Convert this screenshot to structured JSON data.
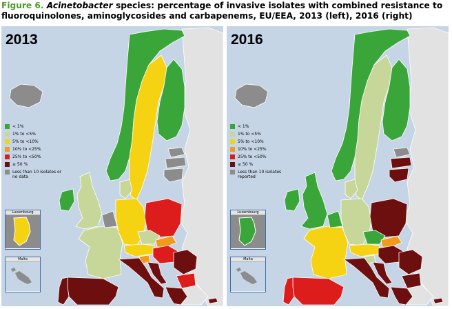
{
  "caption": {
    "figure_label": "Figure 6.",
    "genus": "Acinetobacter",
    "rest": "species: percentage of invasive isolates with combined resistance to fluoroquinolones, aminoglycosides and carbapenems, EU/EEA, 2013 (left), 2016 (right)"
  },
  "colors": {
    "lt1": "#3aa63a",
    "1to5": "#c7d79a",
    "5to10": "#f5d312",
    "10to25": "#f29a1a",
    "25to50": "#dd1c1c",
    "ge50": "#6e0f0f",
    "nodata": "#8c8c8c",
    "outside": "#e2e2e2",
    "sea": "#c5d5e5"
  },
  "legend_left": [
    {
      "label": "< 1%",
      "category": "lt1"
    },
    {
      "label": "1% to <5%",
      "category": "1to5"
    },
    {
      "label": "5% to <10%",
      "category": "5to10"
    },
    {
      "label": "10% to <25%",
      "category": "10to25"
    },
    {
      "label": "25% to <50%",
      "category": "25to50"
    },
    {
      "label": "≥ 50 %",
      "category": "ge50"
    },
    {
      "label": "Less than 10 isolates or no data",
      "category": "nodata"
    }
  ],
  "legend_right": [
    {
      "label": "< 1%",
      "category": "lt1"
    },
    {
      "label": "1% to <5%",
      "category": "1to5"
    },
    {
      "label": "5% to <10%",
      "category": "5to10"
    },
    {
      "label": "10% to <25%",
      "category": "10to25"
    },
    {
      "label": "25% to <50%",
      "category": "25to50"
    },
    {
      "label": "≥ 50 %",
      "category": "ge50"
    },
    {
      "label": "Less than 10 isolates reported",
      "category": "nodata"
    }
  ],
  "maps": [
    {
      "year": "2013",
      "countries": {
        "iceland": "nodata",
        "norway": "lt1",
        "sweden": "5to10",
        "finland": "lt1",
        "estonia": "nodata",
        "latvia": "nodata",
        "lithuania": "nodata",
        "ireland": "lt1",
        "uk": "1to5",
        "france": "1to5",
        "spain": "ge50",
        "portugal": "ge50",
        "benelux": "nodata",
        "denmark": "1to5",
        "germany": "5to10",
        "poland": "25to50",
        "czechia": "1to5",
        "slovakia": "10to25",
        "austria": "5to10",
        "hungary": "25to50",
        "slovenia": "10to25",
        "italy": "ge50",
        "croatia": "ge50",
        "romania": "ge50",
        "bulgaria": "25to50",
        "greece": "ge50",
        "cyprus": "ge50"
      },
      "luxembourg": "5to10",
      "malta": "nodata"
    },
    {
      "year": "2016",
      "countries": {
        "iceland": "nodata",
        "norway": "lt1",
        "sweden": "1to5",
        "finland": "lt1",
        "estonia": "nodata",
        "latvia": "ge50",
        "lithuania": "ge50",
        "ireland": "lt1",
        "uk": "lt1",
        "france": "5to10",
        "spain": "25to50",
        "portugal": "25to50",
        "benelux": "lt1",
        "denmark": "1to5",
        "germany": "1to5",
        "poland": "ge50",
        "czechia": "lt1",
        "slovakia": "10to25",
        "austria": "5to10",
        "hungary": "ge50",
        "slovenia": "1to5",
        "italy": "ge50",
        "croatia": "ge50",
        "romania": "ge50",
        "bulgaria": "ge50",
        "greece": "ge50",
        "cyprus": "ge50"
      },
      "luxembourg": "lt1",
      "malta": "nodata"
    }
  ],
  "insets": {
    "luxembourg_label": "Luxembourg",
    "malta_label": "Malta"
  }
}
